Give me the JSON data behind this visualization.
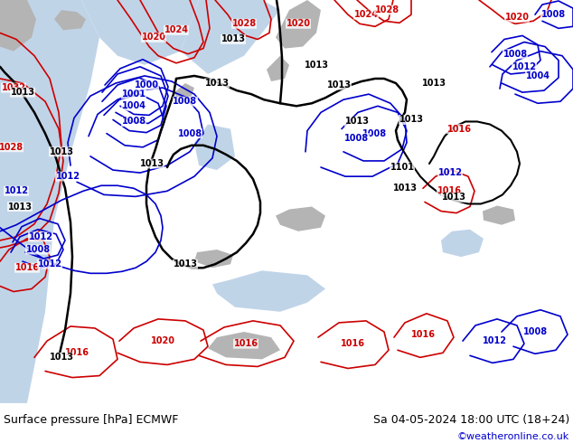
{
  "title_left": "Surface pressure [hPa] ECMWF",
  "title_right": "Sa 04-05-2024 18:00 UTC (18+24)",
  "credit": "©weatheronline.co.uk",
  "credit_color": "#0000cc",
  "fig_width": 6.34,
  "fig_height": 4.9,
  "dpi": 100,
  "map_bg": "#c8e6c8",
  "sea_color": "#c0d4e8",
  "grey_color": "#b4b4b4",
  "red": "#cc0000",
  "blue": "#0000cc",
  "black": "#000000",
  "bar_color": "#d8d8d8"
}
